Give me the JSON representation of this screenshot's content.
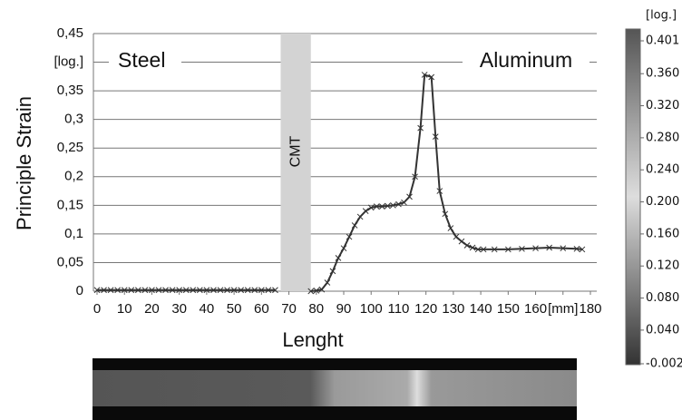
{
  "chart_data": {
    "type": "line",
    "x_label": "Lenght",
    "y_label": "Principle Strain",
    "annotations": [
      "Steel",
      "Aluminum"
    ],
    "regions": [
      {
        "label": "CMT",
        "x": [
          67,
          78
        ]
      }
    ],
    "x": [
      0,
      2.5,
      5,
      7.5,
      10,
      12.5,
      15,
      17.5,
      20,
      22.5,
      25,
      27.5,
      30,
      32.5,
      35,
      37.5,
      40,
      42.5,
      45,
      47.5,
      50,
      52.5,
      55,
      57.5,
      60,
      62.5,
      65,
      72,
      78,
      80,
      82,
      84,
      86,
      88,
      90,
      92,
      94,
      96,
      98,
      100,
      102,
      104,
      106,
      108,
      110,
      112,
      114,
      116,
      118,
      119.5,
      122,
      123.5,
      125,
      127,
      129,
      131,
      133,
      135,
      137,
      139,
      141,
      145,
      150,
      155,
      160,
      165,
      170,
      175,
      177
    ],
    "series": [
      {
        "color": "#333333",
        "values": [
          0.002,
          0.002,
          0.002,
          0.002,
          0.002,
          0.002,
          0.002,
          0.002,
          0.002,
          0.002,
          0.002,
          0.002,
          0.002,
          0.002,
          0.002,
          0.002,
          0.002,
          0.002,
          0.002,
          0.002,
          0.002,
          0.002,
          0.002,
          0.002,
          0.002,
          0.002,
          0.002,
          null,
          0,
          0.001,
          0.003,
          0.015,
          0.035,
          0.058,
          0.075,
          0.095,
          0.115,
          0.13,
          0.14,
          0.146,
          0.148,
          0.148,
          0.149,
          0.15,
          0.152,
          0.155,
          0.165,
          0.2,
          0.285,
          0.378,
          0.374,
          0.27,
          0.175,
          0.135,
          0.11,
          0.095,
          0.087,
          0.08,
          0.076,
          0.073,
          0.073,
          0.073,
          0.073,
          0.074,
          0.075,
          0.076,
          0.075,
          0.074,
          0.073
        ]
      }
    ],
    "xlim": [
      0,
      180
    ],
    "ylim": [
      0,
      0.45
    ],
    "xticks": [
      0,
      10,
      20,
      30,
      40,
      50,
      60,
      70,
      80,
      90,
      100,
      110,
      120,
      130,
      140,
      150,
      160,
      {
        "value": 170,
        "label": "[mm]"
      },
      180
    ],
    "yticks": [
      {
        "value": 0,
        "label": "0"
      },
      {
        "value": 0.05,
        "label": "0,05"
      },
      {
        "value": 0.1,
        "label": "0,1"
      },
      {
        "value": 0.15,
        "label": "0,15"
      },
      {
        "value": 0.2,
        "label": "0,2"
      },
      {
        "value": 0.25,
        "label": "0,25"
      },
      {
        "value": 0.3,
        "label": "0,3"
      },
      {
        "value": 0.35,
        "label": "0,35"
      },
      {
        "value": 0.4,
        "label": "[log.]"
      },
      {
        "value": 0.45,
        "label": "0,45"
      }
    ],
    "grid": true,
    "colorbar": {
      "label": "[log.]",
      "lim": [
        -0.002,
        0.401
      ],
      "ticks": [
        0.401,
        {
          "value": 0.36,
          "label": "0.360"
        },
        {
          "value": 0.32,
          "label": "0.320"
        },
        {
          "value": 0.28,
          "label": "0.280"
        },
        {
          "value": 0.24,
          "label": "0.240"
        },
        {
          "value": 0.2,
          "label": "0.200"
        },
        {
          "value": 0.16,
          "label": "0.160"
        },
        {
          "value": 0.12,
          "label": "0.120"
        },
        {
          "value": 0.08,
          "label": "0.080"
        },
        {
          "value": 0.04,
          "label": "0.040"
        },
        -0.002
      ]
    }
  }
}
